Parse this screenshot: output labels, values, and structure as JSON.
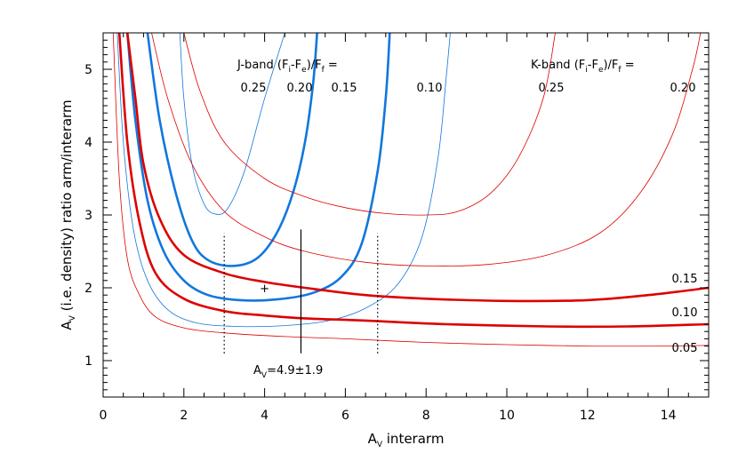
{
  "chart_data": {
    "type": "line",
    "xlabel": {
      "main": "A",
      "sub": "V",
      "rest": " interarm"
    },
    "ylabel": {
      "main": "A",
      "sub": "V",
      "rest": " (i.e. density) ratio arm/interarm"
    },
    "xlim": [
      0,
      15
    ],
    "ylim": [
      0.5,
      5.5
    ],
    "xticks": [
      "0",
      "2",
      "4",
      "6",
      "8",
      "10",
      "12",
      "14"
    ],
    "yticks": [
      "1",
      "2",
      "3",
      "4",
      "5"
    ],
    "colors": {
      "jband": "#1177dd",
      "kband": "#dd0000",
      "axis": "#000000"
    },
    "jband_header": {
      "pre": "J-band (F",
      "s1": "i",
      "mid": "-F",
      "s2": "e",
      "post": ")/F",
      "s3": "f",
      "end": " ="
    },
    "kband_header": {
      "pre": "K-band (F",
      "s1": "i",
      "mid": "-F",
      "s2": "e",
      "post": ")/F",
      "s3": "f",
      "end": " ="
    },
    "jband_labels": [
      "0.25",
      "0.20",
      "0.15",
      "0.10"
    ],
    "kband_labels_top": [
      "0.25",
      "0.20"
    ],
    "kband_labels_right": [
      "0.15",
      "0.10",
      "0.05"
    ],
    "series": [
      {
        "band": "J",
        "level": "0.25",
        "emphasis": "thin",
        "points": [
          [
            1.9,
            5.5
          ],
          [
            2.0,
            4.6
          ],
          [
            2.2,
            3.7
          ],
          [
            2.5,
            3.15
          ],
          [
            2.8,
            3.01
          ],
          [
            3.1,
            3.1
          ],
          [
            3.5,
            3.6
          ],
          [
            4.0,
            4.6
          ],
          [
            4.5,
            5.5
          ]
        ]
      },
      {
        "band": "J",
        "level": "0.20",
        "emphasis": "bold",
        "points": [
          [
            1.1,
            5.5
          ],
          [
            1.4,
            4.3
          ],
          [
            1.8,
            3.3
          ],
          [
            2.2,
            2.65
          ],
          [
            2.6,
            2.38
          ],
          [
            3.2,
            2.3
          ],
          [
            3.8,
            2.4
          ],
          [
            4.3,
            2.75
          ],
          [
            4.7,
            3.3
          ],
          [
            5.0,
            4.0
          ],
          [
            5.2,
            4.8
          ],
          [
            5.3,
            5.5
          ]
        ]
      },
      {
        "band": "J",
        "level": "0.15",
        "emphasis": "bold",
        "points": [
          [
            0.6,
            5.5
          ],
          [
            0.8,
            4.3
          ],
          [
            1.1,
            3.2
          ],
          [
            1.5,
            2.5
          ],
          [
            2.0,
            2.1
          ],
          [
            2.6,
            1.9
          ],
          [
            3.4,
            1.83
          ],
          [
            4.3,
            1.84
          ],
          [
            5.2,
            1.93
          ],
          [
            5.9,
            2.15
          ],
          [
            6.4,
            2.6
          ],
          [
            6.8,
            3.6
          ],
          [
            7.0,
            4.6
          ],
          [
            7.1,
            5.5
          ]
        ]
      },
      {
        "band": "J",
        "level": "0.10",
        "emphasis": "thin",
        "points": [
          [
            0.35,
            5.5
          ],
          [
            0.5,
            4.0
          ],
          [
            0.75,
            2.8
          ],
          [
            1.1,
            2.1
          ],
          [
            1.6,
            1.7
          ],
          [
            2.3,
            1.52
          ],
          [
            3.3,
            1.47
          ],
          [
            4.5,
            1.48
          ],
          [
            5.6,
            1.55
          ],
          [
            6.5,
            1.72
          ],
          [
            7.3,
            2.05
          ],
          [
            7.9,
            2.7
          ],
          [
            8.3,
            3.8
          ],
          [
            8.5,
            4.9
          ],
          [
            8.6,
            5.5
          ]
        ]
      },
      {
        "band": "K",
        "level": "0.25",
        "emphasis": "thin",
        "points": [
          [
            2.0,
            5.5
          ],
          [
            2.4,
            4.7
          ],
          [
            3.0,
            4.0
          ],
          [
            4.0,
            3.5
          ],
          [
            5.0,
            3.25
          ],
          [
            6.0,
            3.1
          ],
          [
            7.0,
            3.02
          ],
          [
            8.0,
            3.0
          ],
          [
            8.8,
            3.05
          ],
          [
            9.6,
            3.3
          ],
          [
            10.3,
            3.8
          ],
          [
            10.9,
            4.6
          ],
          [
            11.2,
            5.5
          ]
        ]
      },
      {
        "band": "K",
        "level": "0.20",
        "emphasis": "thin",
        "points": [
          [
            1.2,
            5.5
          ],
          [
            1.6,
            4.6
          ],
          [
            2.2,
            3.7
          ],
          [
            3.0,
            3.05
          ],
          [
            4.0,
            2.7
          ],
          [
            5.0,
            2.5
          ],
          [
            6.5,
            2.35
          ],
          [
            8.0,
            2.3
          ],
          [
            9.5,
            2.32
          ],
          [
            11.0,
            2.45
          ],
          [
            12.3,
            2.75
          ],
          [
            13.3,
            3.3
          ],
          [
            14.1,
            4.1
          ],
          [
            14.6,
            5.0
          ],
          [
            14.8,
            5.5
          ]
        ]
      },
      {
        "band": "K",
        "level": "0.15",
        "emphasis": "bold",
        "points": [
          [
            0.6,
            5.5
          ],
          [
            0.8,
            4.6
          ],
          [
            1.0,
            3.7
          ],
          [
            1.4,
            2.95
          ],
          [
            2.0,
            2.45
          ],
          [
            3.0,
            2.2
          ],
          [
            4.0,
            2.08
          ],
          [
            5.0,
            2.0
          ],
          [
            6.5,
            1.9
          ],
          [
            8.0,
            1.85
          ],
          [
            10.0,
            1.82
          ],
          [
            12.0,
            1.83
          ],
          [
            13.5,
            1.9
          ],
          [
            15.0,
            2.0
          ]
        ]
      },
      {
        "band": "K",
        "level": "0.10",
        "emphasis": "bold",
        "points": [
          [
            0.4,
            5.5
          ],
          [
            0.6,
            4.0
          ],
          [
            0.9,
            2.9
          ],
          [
            1.3,
            2.2
          ],
          [
            2.0,
            1.85
          ],
          [
            3.0,
            1.68
          ],
          [
            4.0,
            1.62
          ],
          [
            5.0,
            1.58
          ],
          [
            6.5,
            1.55
          ],
          [
            8.5,
            1.5
          ],
          [
            11.0,
            1.47
          ],
          [
            13.0,
            1.47
          ],
          [
            15.0,
            1.5
          ]
        ]
      },
      {
        "band": "K",
        "level": "0.05",
        "emphasis": "thin",
        "points": [
          [
            0.25,
            5.5
          ],
          [
            0.4,
            3.5
          ],
          [
            0.6,
            2.4
          ],
          [
            0.9,
            1.9
          ],
          [
            1.3,
            1.6
          ],
          [
            2.0,
            1.45
          ],
          [
            3.0,
            1.38
          ],
          [
            4.5,
            1.33
          ],
          [
            6.0,
            1.3
          ],
          [
            8.0,
            1.25
          ],
          [
            10.0,
            1.22
          ],
          [
            12.0,
            1.2
          ],
          [
            14.0,
            1.2
          ],
          [
            15.0,
            1.21
          ]
        ]
      }
    ],
    "marker": {
      "x": 4.0,
      "y": 2.0,
      "symbol": "+"
    },
    "vlines": [
      {
        "x": 3.0,
        "y0": 1.1,
        "y1": 2.75,
        "style": "dotted"
      },
      {
        "x": 4.9,
        "y0": 1.1,
        "y1": 2.8,
        "style": "solid"
      },
      {
        "x": 6.8,
        "y0": 1.1,
        "y1": 2.75,
        "style": "dotted"
      }
    ],
    "annotation": {
      "main": "A",
      "sub": "V",
      "rest": "=4.9±1.9",
      "x": 4.9,
      "y": 0.8
    }
  }
}
